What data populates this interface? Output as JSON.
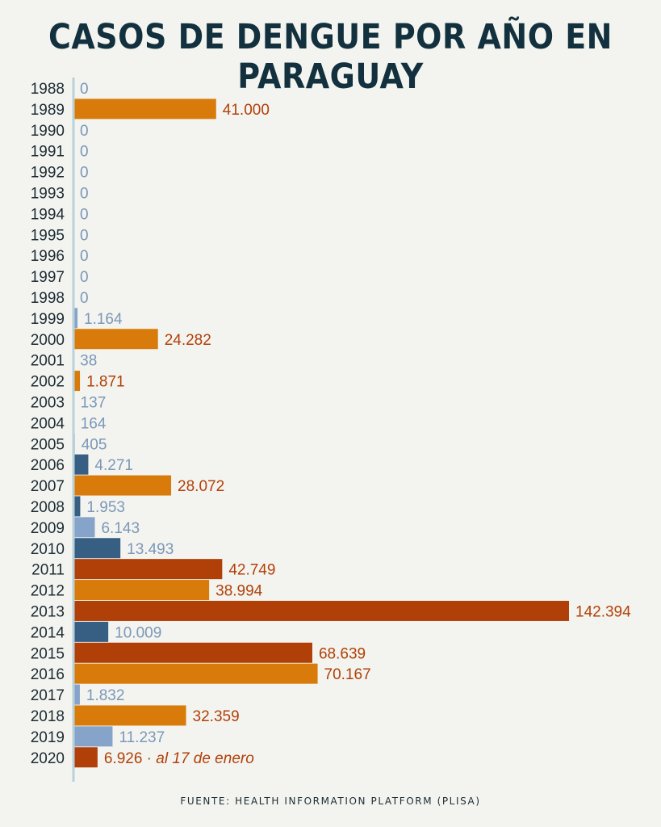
{
  "title": "CASOS DE DENGUE POR AÑO EN PARAGUAY",
  "source": "FUENTE: HEALTH INFORMATION PLATFORM (PLISA)",
  "colors": {
    "orange": "#d97b0b",
    "rust": "#b14008",
    "dark_blue": "#375e83",
    "light_blue": "#86a3c9",
    "axis": "#b9d2da",
    "year_text": "#1c2b33",
    "low_value_text": "#7b97b8",
    "high_value_text": "#b14008"
  },
  "chart_data": {
    "type": "bar",
    "orientation": "horizontal",
    "title": "CASOS DE DENGUE POR AÑO EN PARAGUAY",
    "xlabel": "",
    "ylabel": "",
    "xlim": [
      0,
      142394
    ],
    "grid": false,
    "categories": [
      "1988",
      "1989",
      "1990",
      "1991",
      "1992",
      "1993",
      "1994",
      "1995",
      "1996",
      "1997",
      "1998",
      "1999",
      "2000",
      "2001",
      "2002",
      "2003",
      "2004",
      "2005",
      "2006",
      "2007",
      "2008",
      "2009",
      "2010",
      "2011",
      "2012",
      "2013",
      "2014",
      "2015",
      "2016",
      "2017",
      "2018",
      "2019",
      "2020"
    ],
    "values": [
      0,
      41000,
      0,
      0,
      0,
      0,
      0,
      0,
      0,
      0,
      0,
      1164,
      24282,
      38,
      1871,
      137,
      164,
      405,
      4271,
      28072,
      1953,
      6143,
      13493,
      42749,
      38994,
      142394,
      10009,
      68639,
      70167,
      1832,
      32359,
      11237,
      6926
    ],
    "value_labels": [
      "0",
      "41.000",
      "0",
      "0",
      "0",
      "0",
      "0",
      "0",
      "0",
      "0",
      "0",
      "1.164",
      "24.282",
      "38",
      "1.871",
      "137",
      "164",
      "405",
      "4.271",
      "28.072",
      "1.953",
      "6.143",
      "13.493",
      "42.749",
      "38.994",
      "142.394",
      "10.009",
      "68.639",
      "70.167",
      "1.832",
      "32.359",
      "11.237",
      "6.926"
    ],
    "bar_colors": [
      "light_blue",
      "orange",
      "light_blue",
      "light_blue",
      "light_blue",
      "light_blue",
      "light_blue",
      "light_blue",
      "light_blue",
      "light_blue",
      "light_blue",
      "light_blue",
      "orange",
      "light_blue",
      "orange",
      "light_blue",
      "light_blue",
      "light_blue",
      "dark_blue",
      "orange",
      "dark_blue",
      "light_blue",
      "dark_blue",
      "rust",
      "orange",
      "rust",
      "dark_blue",
      "rust",
      "orange",
      "light_blue",
      "orange",
      "light_blue",
      "rust"
    ],
    "annotations": [
      {
        "category": "2020",
        "text": " · al 17 de enero"
      }
    ]
  }
}
